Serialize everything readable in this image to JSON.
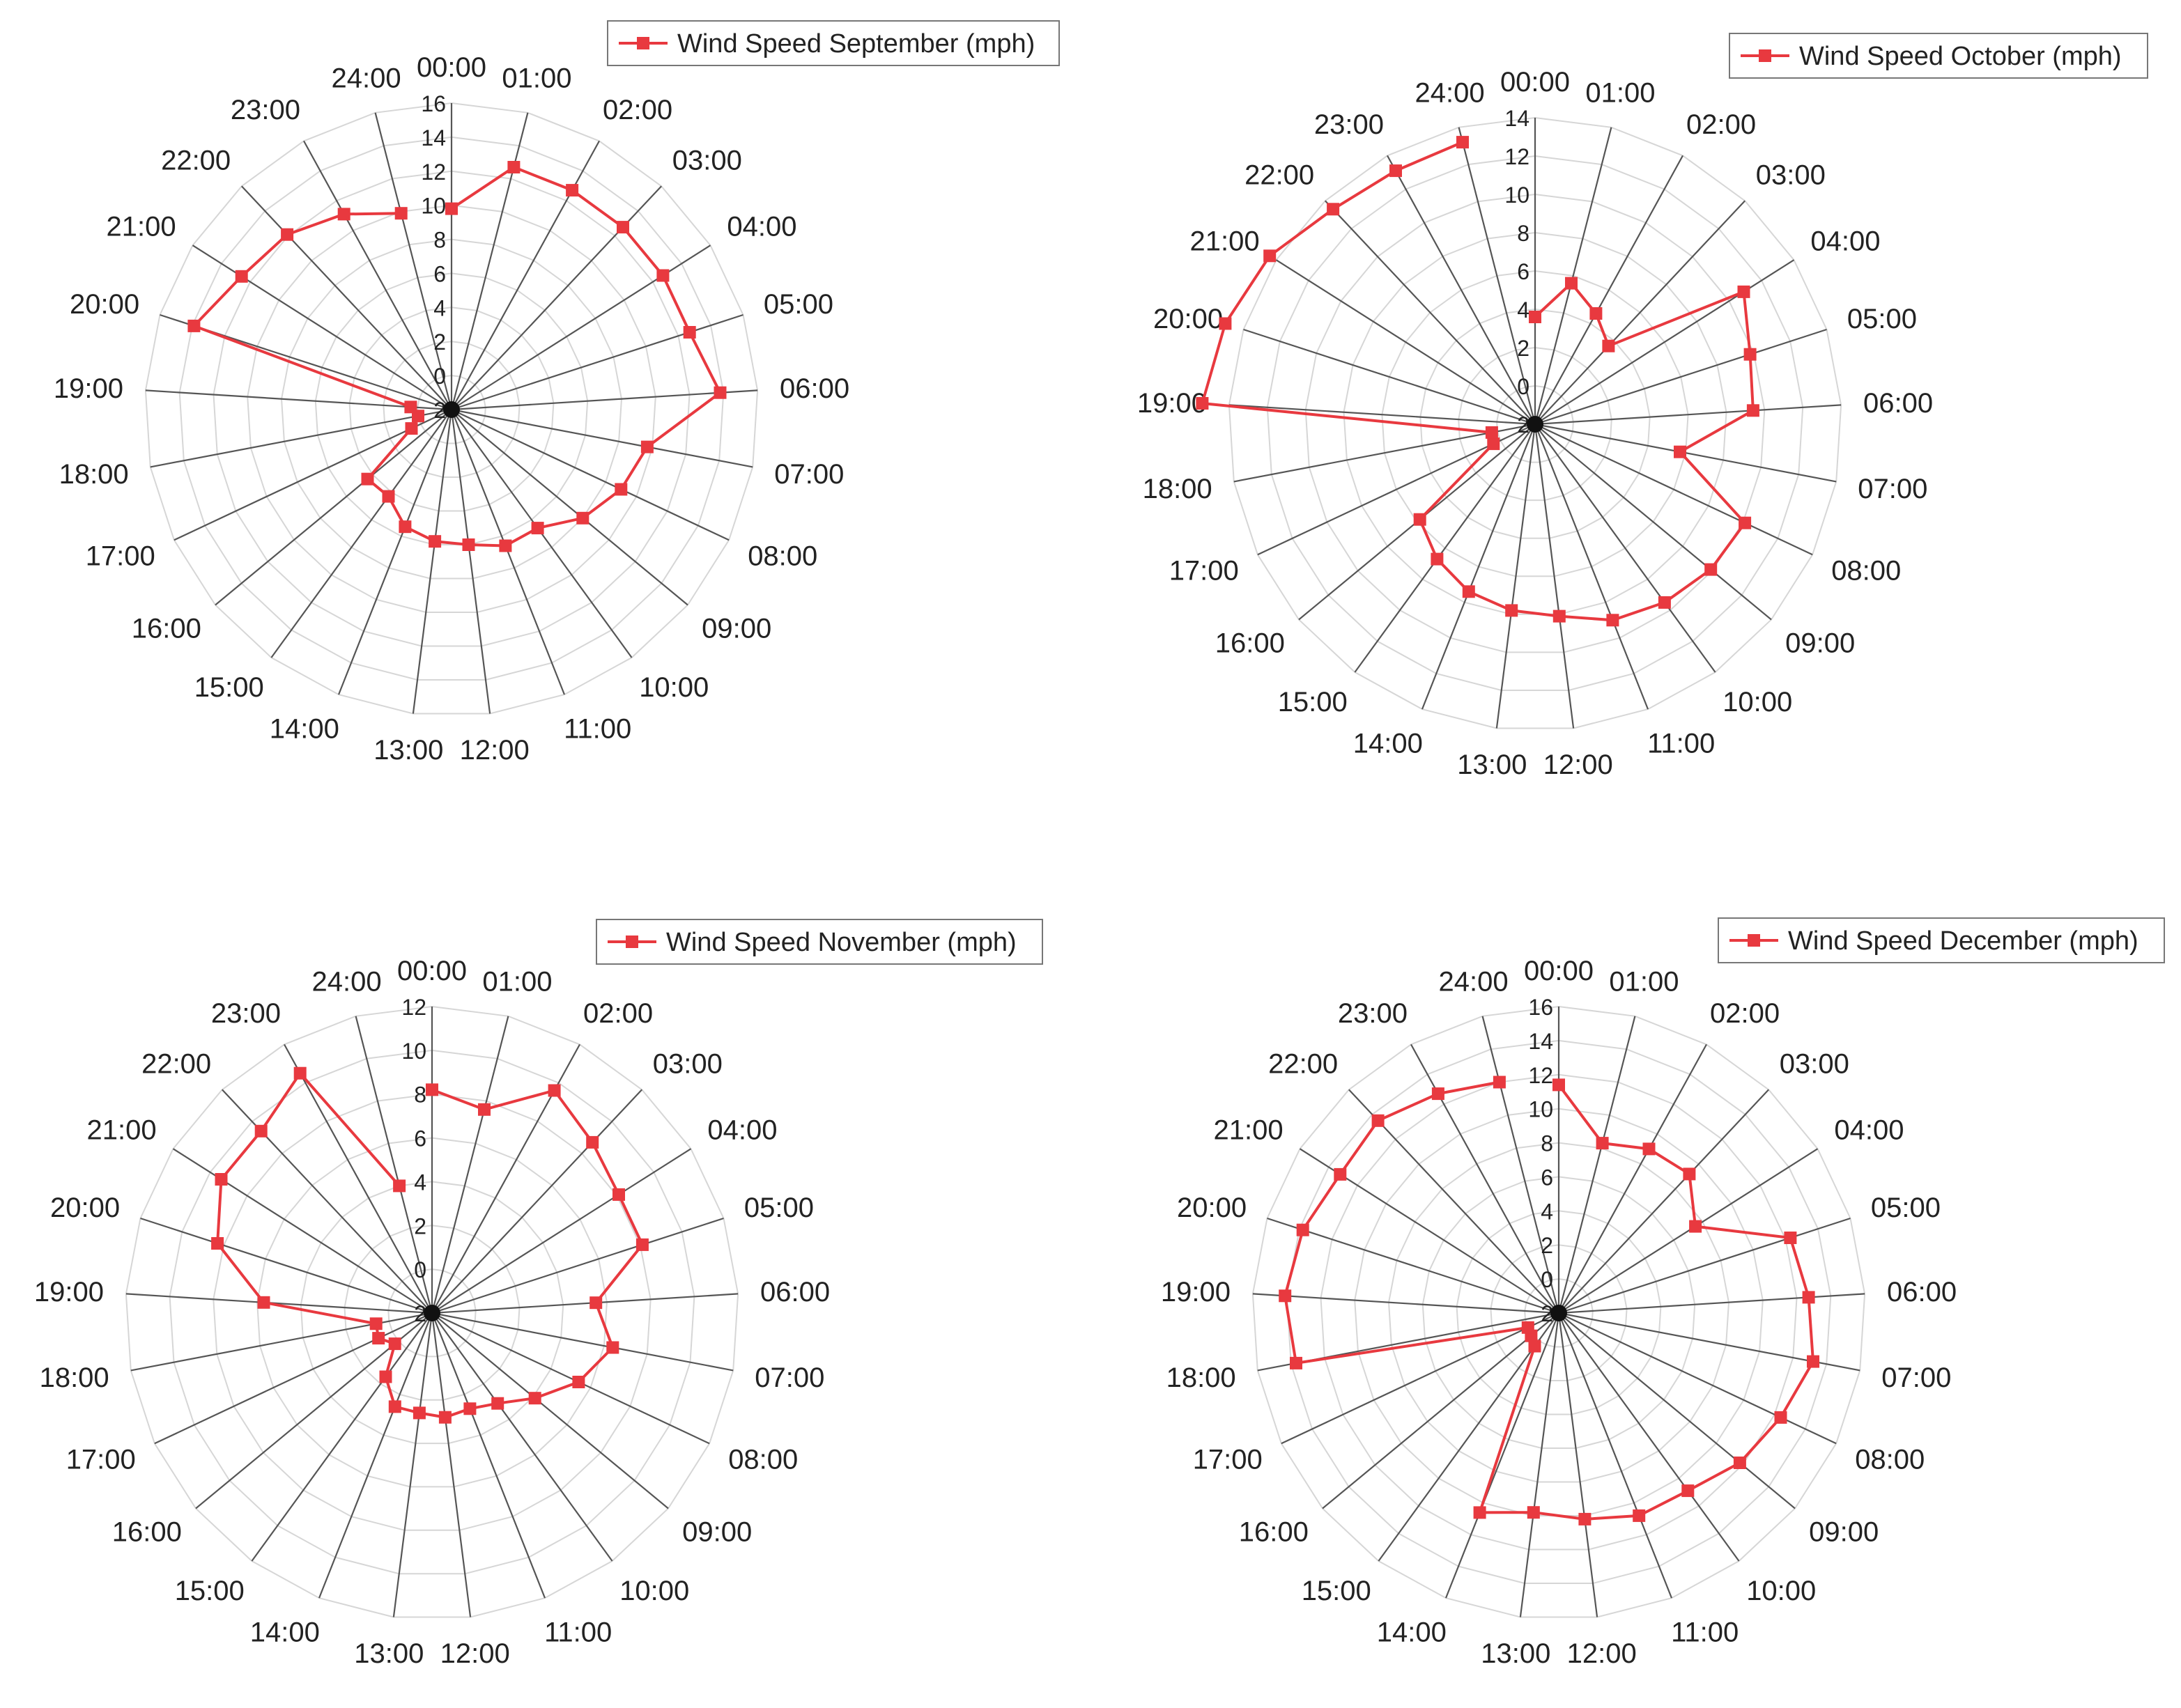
{
  "style": {
    "series_color": "#e8393f",
    "spoke_color": "#555555",
    "ring_color": "#d6d6d6",
    "text_color": "#222222"
  },
  "time_labels": [
    "00:00",
    "01:00",
    "02:00",
    "03:00",
    "04:00",
    "05:00",
    "06:00",
    "07:00",
    "08:00",
    "09:00",
    "10:00",
    "11:00",
    "12:00",
    "13:00",
    "14:00",
    "15:00",
    "16:00",
    "17:00",
    "18:00",
    "19:00",
    "20:00",
    "21:00",
    "22:00",
    "23:00",
    "24:00"
  ],
  "chart_data": [
    {
      "type": "radar",
      "legend": "Wind Speed September (mph)",
      "categories": [
        "00:00",
        "01:00",
        "02:00",
        "03:00",
        "04:00",
        "05:00",
        "06:00",
        "07:00",
        "08:00",
        "09:00",
        "10:00",
        "11:00",
        "12:00",
        "13:00",
        "14:00",
        "15:00",
        "16:00",
        "17:00",
        "18:00",
        "19:00",
        "20:00",
        "21:00",
        "22:00",
        "23:00",
        "24:00"
      ],
      "values": [
        9.8,
        12.7,
        12.7,
        12.7,
        12.7,
        12.7,
        13.8,
        9.7,
        9.0,
        8.0,
        6.6,
        6.6,
        6.0,
        5.8,
        5.4,
        4.3,
        4.4,
        0.6,
        0.0,
        0.4,
        13.9,
        12.6,
        12.1,
        11.1,
        9.9
      ],
      "rlim": [
        -2,
        16
      ],
      "rticks": [
        -2,
        0,
        2,
        4,
        6,
        8,
        10,
        12,
        14,
        16
      ],
      "rtick_labels": [
        "2",
        "0",
        "2",
        "4",
        "6",
        "8",
        "10",
        "12",
        "14",
        "16"
      ]
    },
    {
      "type": "radar",
      "legend": "Wind Speed October (mph)",
      "categories": [
        "00:00",
        "01:00",
        "02:00",
        "03:00",
        "04:00",
        "05:00",
        "06:00",
        "07:00",
        "08:00",
        "09:00",
        "10:00",
        "11:00",
        "12:00",
        "13:00",
        "14:00",
        "15:00",
        "16:00",
        "17:00",
        "18:00",
        "19:00",
        "20:00",
        "21:00",
        "22:00",
        "23:00",
        "24:00"
      ],
      "values": [
        3.6,
        5.6,
        4.6,
        3.6,
        10.9,
        9.8,
        9.4,
        5.7,
        10.1,
        9.9,
        9.5,
        9.0,
        8.1,
        7.8,
        7.4,
        6.7,
        5.8,
        0.4,
        0.3,
        15.4,
        15.0,
        14.4,
        13.4,
        13.1,
        13.2
      ],
      "rlim": [
        -2,
        14
      ],
      "rticks": [
        -2,
        0,
        2,
        4,
        6,
        8,
        10,
        12,
        14
      ],
      "rtick_labels": [
        "2",
        "0",
        "2",
        "4",
        "6",
        "8",
        "10",
        "12",
        "14"
      ]
    },
    {
      "type": "radar",
      "legend": "Wind Speed November (mph)",
      "categories": [
        "00:00",
        "01:00",
        "02:00",
        "03:00",
        "04:00",
        "05:00",
        "06:00",
        "07:00",
        "08:00",
        "09:00",
        "10:00",
        "11:00",
        "12:00",
        "13:00",
        "14:00",
        "15:00",
        "16:00",
        "17:00",
        "18:00",
        "19:00",
        "20:00",
        "21:00",
        "22:00",
        "23:00",
        "24:00"
      ],
      "values": [
        8.2,
        7.6,
        9.6,
        8.7,
        8.1,
        8.1,
        5.5,
        6.4,
        5.4,
        4.1,
        3.1,
        2.7,
        2.8,
        2.6,
        2.6,
        1.6,
        0.2,
        0.7,
        0.6,
        5.7,
        8.3,
        9.4,
        9.4,
        10.5,
        4.0
      ],
      "rlim": [
        -2,
        12
      ],
      "rticks": [
        -2,
        0,
        2,
        4,
        6,
        8,
        10,
        12
      ],
      "rtick_labels": [
        "2",
        "0",
        "2",
        "4",
        "6",
        "8",
        "10",
        "12"
      ]
    },
    {
      "type": "radar",
      "legend": "Wind Speed December (mph)",
      "categories": [
        "00:00",
        "01:00",
        "02:00",
        "03:00",
        "04:00",
        "05:00",
        "06:00",
        "07:00",
        "08:00",
        "09:00",
        "10:00",
        "11:00",
        "12:00",
        "13:00",
        "14:00",
        "15:00",
        "16:00",
        "17:00",
        "18:00",
        "19:00",
        "20:00",
        "21:00",
        "22:00",
        "23:00",
        "24:00"
      ],
      "values": [
        11.4,
        8.3,
        9.0,
        9.2,
        7.5,
        12.3,
        12.7,
        13.2,
        12.4,
        11.8,
        10.9,
        10.8,
        10.2,
        9.8,
        10.6,
        0.4,
        0.1,
        0.0,
        13.7,
        14.1,
        13.8,
        13.2,
        13.5,
        12.7,
        12.0
      ],
      "rlim": [
        -2,
        16
      ],
      "rticks": [
        -2,
        0,
        2,
        4,
        6,
        8,
        10,
        12,
        14,
        16
      ],
      "rtick_labels": [
        "2",
        "0",
        "2",
        "4",
        "6",
        "8",
        "10",
        "12",
        "14",
        "16"
      ]
    }
  ]
}
